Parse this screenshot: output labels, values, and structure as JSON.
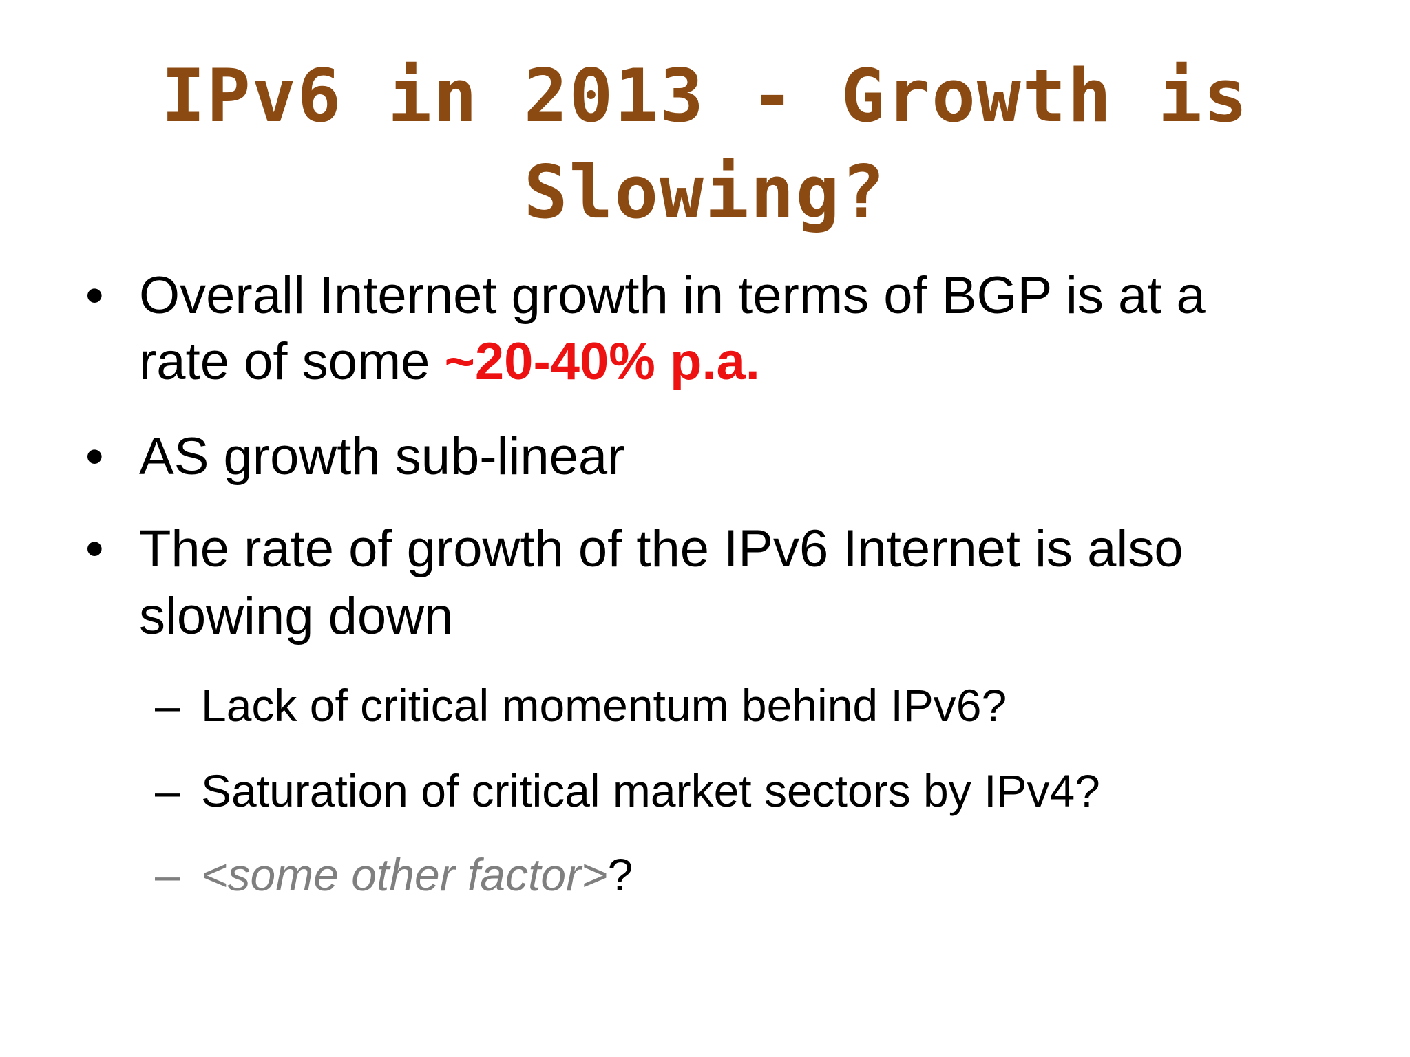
{
  "slide": {
    "title_line1": "IPv6 in 2013 - Growth is",
    "title_line2": "Slowing?",
    "bullets": [
      {
        "line1": "Overall Internet growth in terms of BGP is at a",
        "line2_prefix": "rate of some ",
        "line2_highlight": "~20-40% p.a."
      },
      {
        "line1": "AS growth sub-linear"
      },
      {
        "line1": "The rate of growth of the IPv6 Internet is also",
        "line2": "slowing down"
      }
    ],
    "bullet_marker": "•",
    "sub_marker": "–",
    "sub_items": [
      "Lack of critical momentum behind IPv6?",
      "Saturation of critical market sectors by IPv4?"
    ],
    "sub_item_placeholder": "<some other factor>",
    "sub_item_placeholder_suffix": "?"
  },
  "colors": {
    "title": "#8b4a12",
    "highlight": "#ee1111",
    "muted": "#7f7f7f"
  }
}
